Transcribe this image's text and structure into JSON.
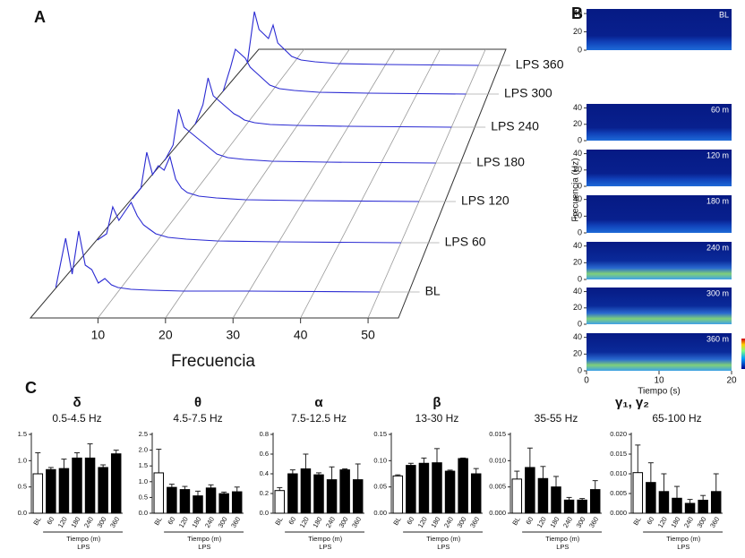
{
  "panels": [
    "A",
    "B",
    "C"
  ],
  "chart_data": [
    {
      "type": "waterfall",
      "xlabel": "Frecuencia",
      "x": [
        0.5,
        2,
        3,
        4,
        5,
        6,
        7,
        8,
        9,
        10,
        12,
        15,
        20,
        30,
        50
      ],
      "xlim": [
        0,
        54.5
      ],
      "xticks": [
        10,
        20,
        30,
        40,
        50
      ],
      "series": [
        {
          "name": "BL",
          "color": "#2a2ad2",
          "values": [
            5,
            60,
            20,
            68,
            30,
            25,
            10,
            15,
            8,
            5,
            3,
            2,
            1,
            1,
            0
          ]
        },
        {
          "name": "LPS 60",
          "color": "#2a2ad2",
          "values": [
            3,
            10,
            40,
            25,
            35,
            45,
            30,
            20,
            15,
            10,
            6,
            4,
            2,
            1,
            0
          ]
        },
        {
          "name": "LPS 120",
          "color": "#2a2ad2",
          "values": [
            3,
            15,
            55,
            30,
            40,
            35,
            50,
            25,
            15,
            10,
            6,
            4,
            2,
            1,
            0
          ]
        },
        {
          "name": "LPS 180",
          "color": "#2a2ad2",
          "values": [
            3,
            20,
            60,
            40,
            35,
            30,
            25,
            20,
            15,
            10,
            6,
            4,
            2,
            1,
            0
          ]
        },
        {
          "name": "LPS 240",
          "color": "#2a2ad2",
          "values": [
            3,
            25,
            55,
            35,
            30,
            25,
            20,
            15,
            12,
            8,
            5,
            3,
            2,
            1,
            0
          ]
        },
        {
          "name": "LPS 300",
          "color": "#2a2ad2",
          "values": [
            3,
            30,
            50,
            45,
            40,
            30,
            25,
            20,
            15,
            10,
            6,
            4,
            2,
            1,
            0
          ]
        },
        {
          "name": "LPS 360",
          "color": "#2a2ad2",
          "values": [
            3,
            60,
            40,
            35,
            30,
            45,
            25,
            20,
            15,
            10,
            6,
            4,
            2,
            1,
            0
          ]
        }
      ]
    },
    {
      "type": "spectrogram",
      "ylabel": "Frecuencia (Hz)",
      "xlabel": "Tiempo (s)",
      "xlim": [
        0,
        20
      ],
      "xticks": [
        0,
        10,
        20
      ],
      "ylim": [
        0,
        45
      ],
      "yticks": [
        0,
        20,
        40
      ],
      "labels": [
        "BL",
        "60 m",
        "120 m",
        "180 m",
        "240 m",
        "300 m",
        "360 m"
      ]
    },
    {
      "type": "bar",
      "title": "δ",
      "subtitle": "0.5-4.5 Hz",
      "xlabel": "Tiempo (m)",
      "group_label": "LPS",
      "categories": [
        "BL",
        "60",
        "120",
        "180",
        "240",
        "300",
        "360"
      ],
      "colors": [
        "#ffffff",
        "#000000",
        "#000000",
        "#000000",
        "#000000",
        "#000000",
        "#000000"
      ],
      "values": [
        0.75,
        0.83,
        0.85,
        1.05,
        1.05,
        0.87,
        1.13
      ],
      "errors": [
        0.4,
        0.04,
        0.18,
        0.1,
        0.27,
        0.05,
        0.07
      ],
      "ylim": [
        0,
        1.5
      ],
      "yticks": [
        {
          "value": 0,
          "label": "0.0"
        },
        0.5,
        {
          "value": 1,
          "label": "1.0"
        },
        1.5
      ]
    },
    {
      "type": "bar",
      "title": "θ",
      "subtitle": "4.5-7.5 Hz",
      "xlabel": "Tiempo (m)",
      "group_label": "LPS",
      "categories": [
        "BL",
        "60",
        "120",
        "180",
        "240",
        "300",
        "360"
      ],
      "colors": [
        "#ffffff",
        "#000000",
        "#000000",
        "#000000",
        "#000000",
        "#000000",
        "#000000"
      ],
      "values": [
        1.28,
        0.82,
        0.75,
        0.55,
        0.8,
        0.62,
        0.68
      ],
      "errors": [
        0.75,
        0.1,
        0.1,
        0.15,
        0.1,
        0.05,
        0.15
      ],
      "ylim": [
        0,
        2.5
      ],
      "yticks": [
        {
          "value": 0,
          "label": "0.0"
        },
        0.5,
        {
          "value": 1,
          "label": "1.0"
        },
        1.5,
        {
          "value": 2,
          "label": "2.0"
        },
        2.5
      ]
    },
    {
      "type": "bar",
      "title": "α",
      "subtitle": "7.5-12.5 Hz",
      "xlabel": "Tiempo (m)",
      "group_label": "LPS",
      "categories": [
        "BL",
        "60",
        "120",
        "180",
        "240",
        "300",
        "360"
      ],
      "colors": [
        "#ffffff",
        "#000000",
        "#000000",
        "#000000",
        "#000000",
        "#000000",
        "#000000"
      ],
      "values": [
        0.23,
        0.4,
        0.45,
        0.39,
        0.34,
        0.44,
        0.34
      ],
      "errors": [
        0.03,
        0.04,
        0.15,
        0.02,
        0.13,
        0.01,
        0.16
      ],
      "ylim": [
        0,
        0.8
      ],
      "yticks": [
        {
          "value": 0,
          "label": "0.0"
        },
        0.2,
        0.4,
        0.6,
        0.8
      ]
    },
    {
      "type": "bar",
      "title": "β",
      "subtitle": "13-30 Hz",
      "xlabel": "Tiempo (m)",
      "group_label": "LPS",
      "categories": [
        "BL",
        "60",
        "120",
        "180",
        "240",
        "300",
        "360"
      ],
      "colors": [
        "#ffffff",
        "#000000",
        "#000000",
        "#000000",
        "#000000",
        "#000000",
        "#000000"
      ],
      "values": [
        0.071,
        0.091,
        0.095,
        0.096,
        0.08,
        0.104,
        0.075
      ],
      "errors": [
        0.002,
        0.004,
        0.01,
        0.027,
        0.002,
        0.001,
        0.01
      ],
      "ylim": [
        0,
        0.15
      ],
      "yticks": [
        {
          "value": 0,
          "label": "0.00"
        },
        0.05,
        {
          "value": 0.1,
          "label": "0.10"
        },
        0.15
      ]
    },
    {
      "type": "bar",
      "title": "γ₁, γ₂",
      "subtitle": "35-55 Hz",
      "xlabel": "Tiempo (m)",
      "group_label": "LPS",
      "categories": [
        "BL",
        "60",
        "120",
        "180",
        "240",
        "300",
        "360"
      ],
      "colors": [
        "#ffffff",
        "#000000",
        "#000000",
        "#000000",
        "#000000",
        "#000000",
        "#000000"
      ],
      "values": [
        0.0065,
        0.0087,
        0.0066,
        0.005,
        0.0025,
        0.0025,
        0.0045
      ],
      "errors": [
        0.0015,
        0.0037,
        0.0023,
        0.002,
        0.0005,
        0.0003,
        0.0017
      ],
      "ylim": [
        0,
        0.015
      ],
      "yticks": [
        {
          "value": 0,
          "label": "0.000"
        },
        0.005,
        {
          "value": 0.01,
          "label": "0.010"
        },
        0.015
      ]
    },
    {
      "type": "bar",
      "subtitle": "65-100 Hz",
      "xlabel": "Tiempo (m)",
      "group_label": "LPS",
      "categories": [
        "BL",
        "60",
        "120",
        "180",
        "240",
        "300",
        "360"
      ],
      "colors": [
        "#ffffff",
        "#000000",
        "#000000",
        "#000000",
        "#000000",
        "#000000",
        "#000000"
      ],
      "values": [
        0.0103,
        0.0078,
        0.0055,
        0.0038,
        0.0025,
        0.0033,
        0.0055
      ],
      "errors": [
        0.007,
        0.005,
        0.0045,
        0.003,
        0.001,
        0.0012,
        0.0045
      ],
      "ylim": [
        0,
        0.02
      ],
      "yticks": [
        {
          "value": 0,
          "label": "0.000"
        },
        0.005,
        {
          "value": 0.01,
          "label": "0.010"
        },
        0.015,
        {
          "value": 0.02,
          "label": "0.020"
        }
      ]
    }
  ]
}
